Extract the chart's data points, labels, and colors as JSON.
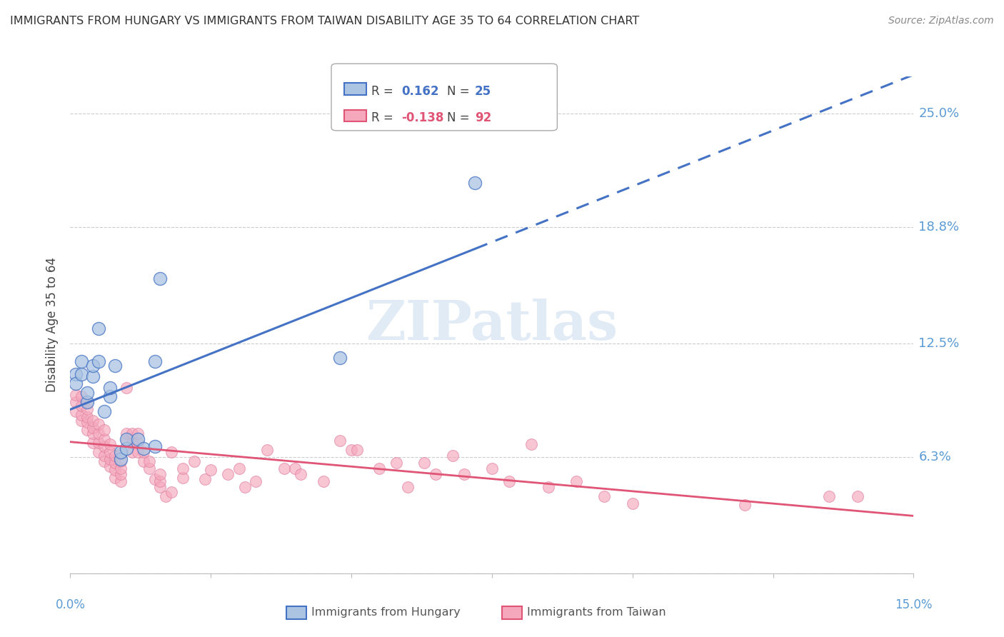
{
  "title": "IMMIGRANTS FROM HUNGARY VS IMMIGRANTS FROM TAIWAN DISABILITY AGE 35 TO 64 CORRELATION CHART",
  "source": "Source: ZipAtlas.com",
  "ylabel": "Disability Age 35 to 64",
  "y_ticks": [
    0.0,
    0.063,
    0.125,
    0.188,
    0.25
  ],
  "y_tick_labels": [
    "",
    "6.3%",
    "12.5%",
    "18.8%",
    "25.0%"
  ],
  "xlim": [
    0.0,
    0.15
  ],
  "ylim": [
    0.0,
    0.27
  ],
  "legend_r_hungary": "0.162",
  "legend_n_hungary": "25",
  "legend_r_taiwan": "-0.138",
  "legend_n_taiwan": "92",
  "color_hungary": "#aac4e2",
  "color_taiwan": "#f5a8bc",
  "color_trend_hungary": "#4472c4",
  "color_trend_taiwan": "#e05575",
  "watermark": "ZIPatlas",
  "hungary_x": [
    0.001,
    0.001,
    0.002,
    0.002,
    0.003,
    0.003,
    0.004,
    0.004,
    0.005,
    0.005,
    0.006,
    0.007,
    0.007,
    0.008,
    0.009,
    0.009,
    0.01,
    0.01,
    0.012,
    0.013,
    0.015,
    0.015,
    0.016,
    0.048,
    0.072
  ],
  "hungary_y": [
    0.108,
    0.103,
    0.108,
    0.115,
    0.093,
    0.098,
    0.107,
    0.113,
    0.115,
    0.133,
    0.088,
    0.096,
    0.101,
    0.113,
    0.062,
    0.066,
    0.068,
    0.073,
    0.073,
    0.068,
    0.069,
    0.115,
    0.16,
    0.117,
    0.212
  ],
  "taiwan_x": [
    0.001,
    0.001,
    0.001,
    0.002,
    0.002,
    0.002,
    0.002,
    0.003,
    0.003,
    0.003,
    0.003,
    0.003,
    0.004,
    0.004,
    0.004,
    0.004,
    0.005,
    0.005,
    0.005,
    0.005,
    0.006,
    0.006,
    0.006,
    0.006,
    0.006,
    0.007,
    0.007,
    0.007,
    0.007,
    0.008,
    0.008,
    0.008,
    0.008,
    0.009,
    0.009,
    0.009,
    0.009,
    0.009,
    0.01,
    0.01,
    0.01,
    0.011,
    0.011,
    0.011,
    0.012,
    0.012,
    0.012,
    0.013,
    0.013,
    0.014,
    0.014,
    0.015,
    0.016,
    0.016,
    0.016,
    0.017,
    0.018,
    0.018,
    0.02,
    0.02,
    0.022,
    0.024,
    0.025,
    0.028,
    0.03,
    0.031,
    0.033,
    0.035,
    0.038,
    0.04,
    0.041,
    0.045,
    0.048,
    0.05,
    0.051,
    0.055,
    0.058,
    0.06,
    0.063,
    0.065,
    0.068,
    0.07,
    0.075,
    0.078,
    0.082,
    0.085,
    0.09,
    0.095,
    0.1,
    0.12,
    0.135,
    0.14
  ],
  "taiwan_y": [
    0.088,
    0.093,
    0.097,
    0.083,
    0.086,
    0.091,
    0.096,
    0.078,
    0.082,
    0.085,
    0.089,
    0.093,
    0.071,
    0.076,
    0.079,
    0.083,
    0.066,
    0.071,
    0.076,
    0.081,
    0.061,
    0.064,
    0.069,
    0.073,
    0.078,
    0.058,
    0.062,
    0.066,
    0.07,
    0.052,
    0.056,
    0.06,
    0.064,
    0.05,
    0.054,
    0.057,
    0.061,
    0.065,
    0.072,
    0.076,
    0.101,
    0.066,
    0.071,
    0.076,
    0.066,
    0.071,
    0.076,
    0.061,
    0.066,
    0.057,
    0.061,
    0.051,
    0.047,
    0.05,
    0.054,
    0.042,
    0.044,
    0.066,
    0.052,
    0.057,
    0.061,
    0.051,
    0.056,
    0.054,
    0.057,
    0.047,
    0.05,
    0.067,
    0.057,
    0.057,
    0.054,
    0.05,
    0.072,
    0.067,
    0.067,
    0.057,
    0.06,
    0.047,
    0.06,
    0.054,
    0.064,
    0.054,
    0.057,
    0.05,
    0.07,
    0.047,
    0.05,
    0.042,
    0.038,
    0.037,
    0.042,
    0.042
  ],
  "background_color": "#ffffff",
  "grid_color": "#cccccc",
  "axis_color": "#bbbbbb",
  "font_color_title": "#333333",
  "font_color_axis": "#5b9bd5",
  "font_color_source": "#888888"
}
